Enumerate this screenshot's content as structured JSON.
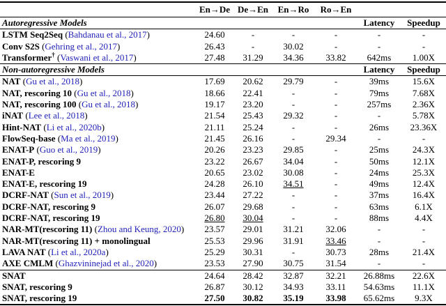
{
  "colors": {
    "citation_link": "#2222bb",
    "text": "#000000",
    "rule": "#000000"
  },
  "table": {
    "bleu_headers": [
      "En→De",
      "De→En",
      "En→Ro",
      "Ro→En"
    ],
    "latency_header": "Latency",
    "speedup_header": "Speedup",
    "sections": [
      {
        "title": "Autoregressive Models",
        "groups": [
          [
            {
              "name": "LSTM Seq2Seq",
              "cite": "Bahdanau et al., 2017",
              "cells": [
                "24.60",
                "-",
                "-",
                "-",
                "-",
                "-"
              ]
            },
            {
              "name": "Conv S2S",
              "cite": "Gehring et al., 2017",
              "cells": [
                "26.43",
                "-",
                "30.02",
                "-",
                "-",
                "-"
              ]
            },
            {
              "name": "Transformer",
              "dagger": true,
              "cite": "Vaswani et al., 2017",
              "cells": [
                "27.48",
                "31.29",
                "34.36",
                "33.82",
                "642ms",
                "1.00X"
              ]
            }
          ]
        ]
      },
      {
        "title": "Non-autoregressive Models",
        "groups": [
          [
            {
              "name": "NAT",
              "cite": "Gu et al., 2018",
              "cells": [
                "17.69",
                "20.62",
                "29.79",
                "-",
                "39ms",
                "15.6X"
              ]
            },
            {
              "name": "NAT, rescoring 10",
              "cite": "Gu et al., 2018",
              "cells": [
                "18.66",
                "22.41",
                "-",
                "-",
                "79ms",
                "7.68X"
              ]
            },
            {
              "name": "NAT, rescoring 100",
              "cite": "Gu et al., 2018",
              "cells": [
                "19.17",
                "23.20",
                "-",
                "-",
                "257ms",
                "2.36X"
              ]
            },
            {
              "name": "iNAT",
              "cite": "Lee et al., 2018",
              "cells": [
                "21.54",
                "25.43",
                "29.32",
                "-",
                "-",
                "5.78X"
              ]
            },
            {
              "name": "Hint-NAT",
              "cite": "Li et al., 2020b",
              "cells": [
                "21.11",
                "25.24",
                "-",
                "-",
                "26ms",
                "23.36X"
              ]
            },
            {
              "name": "FlowSeq-base",
              "cite": "Ma et al., 2019",
              "cells": [
                "21.45",
                "26.16",
                "-",
                "29.34",
                "-",
                "-"
              ]
            },
            {
              "name": "ENAT-P",
              "cite": "Guo et al., 2019",
              "cells": [
                "20.26",
                "23.23",
                "29.85",
                "-",
                "25ms",
                "24.3X"
              ]
            },
            {
              "name": "ENAT-P, rescoring 9",
              "cite": null,
              "cells": [
                "23.22",
                "26.67",
                "34.04",
                "-",
                "50ms",
                "12.1X"
              ]
            },
            {
              "name": "ENAT-E",
              "cite": null,
              "cells": [
                "20.65",
                "23.02",
                "30.08",
                "-",
                "24ms",
                "25.3X"
              ]
            },
            {
              "name": "ENAT-E, rescoring 19",
              "cite": null,
              "cells": [
                "24.28",
                "26.10",
                "34.51",
                "-",
                "49ms",
                "12.4X"
              ],
              "styles": [
                "",
                "",
                "u",
                "",
                "",
                ""
              ]
            },
            {
              "name": "DCRF-NAT",
              "cite": "Sun et al., 2019",
              "cells": [
                "23.44",
                "27.22",
                "-",
                "-",
                "37ms",
                "16.4X"
              ]
            },
            {
              "name": "DCRF-NAT, rescoring 9",
              "cite": null,
              "cells": [
                "26.07",
                "29.68",
                "-",
                "-",
                "63ms",
                "6.1X"
              ]
            },
            {
              "name": "DCRF-NAT, rescoring 19",
              "cite": null,
              "cells": [
                "26.80",
                "30.04",
                "-",
                "-",
                "88ms",
                "4.4X"
              ],
              "styles": [
                "u",
                "u",
                "",
                "",
                "",
                ""
              ]
            },
            {
              "name": "NAR-MT(rescoring 11)",
              "cite": "Zhou and Keung, 2020",
              "cells": [
                "23.57",
                "29.01",
                "31.21",
                "32.06",
                "-",
                "-"
              ]
            },
            {
              "name": "NAR-MT(rescoring 11) + monolingual",
              "cite": null,
              "cells": [
                "25.53",
                "29.96",
                "31.91",
                "33.46",
                "-",
                "-"
              ],
              "styles": [
                "",
                "",
                "",
                "u",
                "",
                ""
              ]
            },
            {
              "name": "LAVA NAT",
              "cite": "Li et al., 2020a",
              "cells": [
                "25.29",
                "30.31",
                "-",
                "30.73",
                "28ms",
                "21.4X"
              ]
            },
            {
              "name": "AXE CMLM",
              "cite": "Ghazvininejad et al., 2020",
              "cells": [
                "23.53",
                "27.90",
                "30.75",
                "31.54",
                "-",
                "-"
              ]
            }
          ],
          [
            {
              "name": "SNAT",
              "cite": null,
              "cells": [
                "24.64",
                "28.42",
                "32.87",
                "32.21",
                "26.88ms",
                "22.6X"
              ]
            },
            {
              "name": "SNAT, rescoring 9",
              "cite": null,
              "cells": [
                "26.87",
                "30.12",
                "34.93",
                "33.11",
                "54.63ms",
                "11.1X"
              ]
            },
            {
              "name": "SNAT, rescoring 19",
              "cite": null,
              "cells": [
                "27.50",
                "30.82",
                "35.19",
                "33.98",
                "65.62ms",
                "9.3X"
              ],
              "styles": [
                "b",
                "b",
                "b",
                "b",
                "",
                ""
              ]
            }
          ]
        ]
      }
    ]
  }
}
